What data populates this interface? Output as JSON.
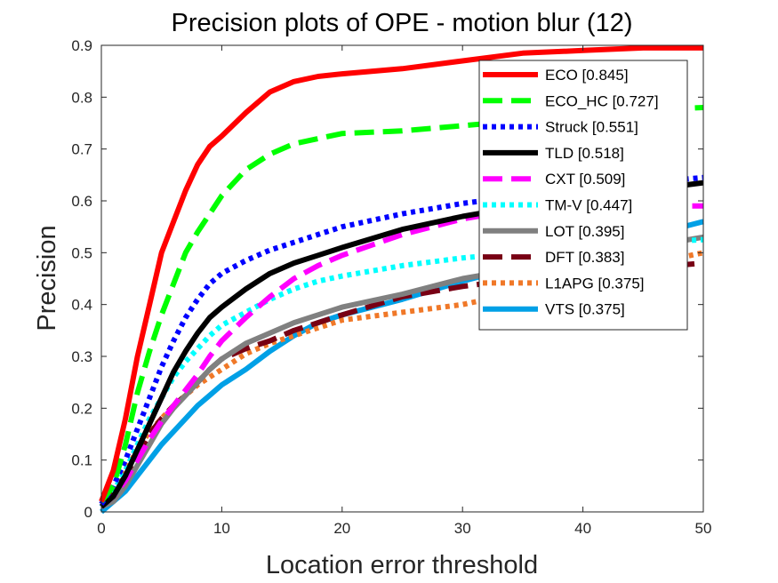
{
  "chart_data": {
    "type": "line",
    "title": "Precision plots of OPE - motion blur (12)",
    "xlabel": "Location error threshold",
    "ylabel": "Precision",
    "xlim": [
      0,
      50
    ],
    "ylim": [
      0,
      0.9
    ],
    "xticks": [
      "0",
      "10",
      "20",
      "30",
      "40",
      "50"
    ],
    "yticks": [
      "0",
      "0.1",
      "0.2",
      "0.3",
      "0.4",
      "0.5",
      "0.6",
      "0.7",
      "0.8",
      "0.9"
    ],
    "grid": false,
    "legend_position": "top-right",
    "series": [
      {
        "name": "VTS [0.375]",
        "color": "#00A0E6",
        "style": "solid",
        "x": [
          0,
          1,
          2,
          3,
          4,
          5,
          6,
          7,
          8,
          9,
          10,
          12,
          14,
          16,
          18,
          20,
          25,
          30,
          35,
          40,
          45,
          50
        ],
        "y": [
          0.0,
          0.02,
          0.04,
          0.07,
          0.1,
          0.13,
          0.155,
          0.18,
          0.205,
          0.225,
          0.245,
          0.275,
          0.31,
          0.34,
          0.365,
          0.38,
          0.41,
          0.445,
          0.475,
          0.505,
          0.53,
          0.56
        ]
      },
      {
        "name": "L1APG [0.375]",
        "color": "#F07828",
        "style": "dotted",
        "x": [
          0,
          1,
          2,
          3,
          4,
          5,
          6,
          7,
          8,
          9,
          10,
          12,
          14,
          16,
          18,
          20,
          25,
          30,
          35,
          40,
          45,
          50
        ],
        "y": [
          0.015,
          0.045,
          0.08,
          0.12,
          0.155,
          0.18,
          0.205,
          0.225,
          0.245,
          0.26,
          0.275,
          0.305,
          0.325,
          0.34,
          0.355,
          0.37,
          0.385,
          0.4,
          0.425,
          0.45,
          0.475,
          0.5
        ]
      },
      {
        "name": "DFT [0.383]",
        "color": "#780014",
        "style": "dashed",
        "x": [
          0,
          1,
          2,
          3,
          4,
          5,
          6,
          7,
          8,
          9,
          10,
          12,
          14,
          16,
          18,
          20,
          25,
          30,
          35,
          40,
          45,
          50
        ],
        "y": [
          0.02,
          0.035,
          0.07,
          0.11,
          0.15,
          0.18,
          0.205,
          0.225,
          0.25,
          0.275,
          0.295,
          0.315,
          0.33,
          0.35,
          0.365,
          0.38,
          0.415,
          0.435,
          0.45,
          0.46,
          0.47,
          0.48
        ]
      },
      {
        "name": "LOT [0.395]",
        "color": "#808080",
        "style": "solid",
        "x": [
          0,
          1,
          2,
          3,
          4,
          5,
          6,
          7,
          8,
          9,
          10,
          12,
          14,
          16,
          18,
          20,
          25,
          30,
          35,
          40,
          45,
          50
        ],
        "y": [
          0.01,
          0.02,
          0.05,
          0.09,
          0.13,
          0.17,
          0.2,
          0.225,
          0.25,
          0.275,
          0.295,
          0.325,
          0.345,
          0.365,
          0.38,
          0.395,
          0.42,
          0.45,
          0.47,
          0.49,
          0.51,
          0.53
        ]
      },
      {
        "name": "TM-V [0.447]",
        "color": "#00FFFF",
        "style": "dotted",
        "x": [
          0,
          1,
          2,
          3,
          4,
          5,
          6,
          7,
          8,
          9,
          10,
          12,
          14,
          16,
          18,
          20,
          25,
          30,
          35,
          40,
          45,
          50
        ],
        "y": [
          0.01,
          0.04,
          0.08,
          0.13,
          0.18,
          0.22,
          0.26,
          0.29,
          0.315,
          0.34,
          0.36,
          0.385,
          0.41,
          0.43,
          0.445,
          0.455,
          0.475,
          0.49,
          0.5,
          0.51,
          0.52,
          0.525
        ]
      },
      {
        "name": "CXT [0.509]",
        "color": "#FF00FF",
        "style": "dashed",
        "x": [
          0,
          1,
          2,
          3,
          4,
          5,
          6,
          7,
          8,
          9,
          10,
          12,
          14,
          16,
          18,
          20,
          25,
          30,
          35,
          40,
          45,
          50
        ],
        "y": [
          0.01,
          0.03,
          0.06,
          0.1,
          0.14,
          0.175,
          0.205,
          0.235,
          0.265,
          0.3,
          0.33,
          0.375,
          0.415,
          0.45,
          0.475,
          0.495,
          0.535,
          0.565,
          0.585,
          0.59,
          0.59,
          0.59
        ]
      },
      {
        "name": "TLD [0.518]",
        "color": "#000000",
        "style": "solid",
        "x": [
          0,
          1,
          2,
          3,
          4,
          5,
          6,
          7,
          8,
          9,
          10,
          12,
          14,
          16,
          18,
          20,
          25,
          30,
          35,
          40,
          45,
          50
        ],
        "y": [
          0.01,
          0.03,
          0.07,
          0.12,
          0.17,
          0.22,
          0.27,
          0.31,
          0.345,
          0.375,
          0.395,
          0.43,
          0.46,
          0.48,
          0.495,
          0.51,
          0.545,
          0.57,
          0.59,
          0.605,
          0.62,
          0.635
        ]
      },
      {
        "name": "Struck [0.551]",
        "color": "#0000FF",
        "style": "dotted",
        "x": [
          0,
          1,
          2,
          3,
          4,
          5,
          6,
          7,
          8,
          9,
          10,
          12,
          14,
          16,
          18,
          20,
          25,
          30,
          35,
          40,
          45,
          50
        ],
        "y": [
          0.015,
          0.05,
          0.1,
          0.16,
          0.22,
          0.28,
          0.33,
          0.375,
          0.41,
          0.44,
          0.46,
          0.485,
          0.505,
          0.52,
          0.535,
          0.55,
          0.575,
          0.595,
          0.61,
          0.625,
          0.635,
          0.645
        ]
      },
      {
        "name": "ECO_HC [0.727]",
        "color": "#00FF00",
        "style": "dashed",
        "x": [
          0,
          1,
          2,
          3,
          4,
          5,
          6,
          7,
          8,
          9,
          10,
          12,
          14,
          16,
          18,
          20,
          25,
          30,
          35,
          40,
          45,
          50
        ],
        "y": [
          0.02,
          0.05,
          0.13,
          0.23,
          0.31,
          0.38,
          0.44,
          0.5,
          0.54,
          0.575,
          0.61,
          0.66,
          0.69,
          0.71,
          0.72,
          0.73,
          0.735,
          0.745,
          0.755,
          0.765,
          0.775,
          0.78
        ]
      },
      {
        "name": "ECO [0.845]",
        "color": "#FF0000",
        "style": "solid",
        "x": [
          0,
          1,
          2,
          3,
          4,
          5,
          6,
          7,
          8,
          9,
          10,
          12,
          14,
          16,
          18,
          20,
          25,
          30,
          35,
          40,
          45,
          50
        ],
        "y": [
          0.02,
          0.08,
          0.18,
          0.3,
          0.4,
          0.5,
          0.56,
          0.62,
          0.67,
          0.705,
          0.725,
          0.77,
          0.81,
          0.83,
          0.84,
          0.845,
          0.855,
          0.87,
          0.885,
          0.89,
          0.895,
          0.895
        ]
      }
    ]
  },
  "legend_order": [
    "ECO [0.845]",
    "ECO_HC [0.727]",
    "Struck [0.551]",
    "TLD [0.518]",
    "CXT [0.509]",
    "TM-V [0.447]",
    "LOT [0.395]",
    "DFT [0.383]",
    "L1APG [0.375]",
    "VTS [0.375]"
  ]
}
